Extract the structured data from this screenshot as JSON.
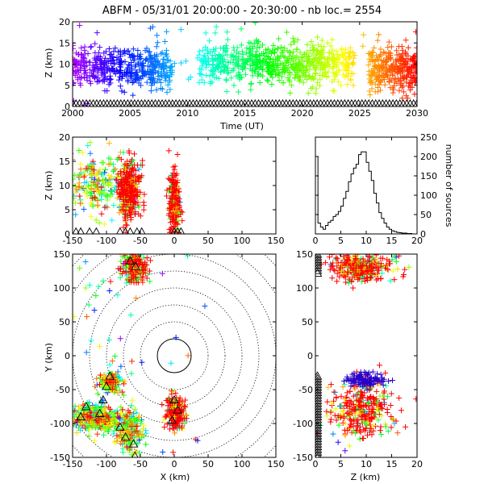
{
  "figure": {
    "title": "ABFM - 05/31/01 20:00:00 - 20:30:00 - nb loc.=    2554"
  },
  "chart_data": [
    {
      "id": "time_height",
      "type": "scatter",
      "xlabel": "Time (UT)",
      "ylabel": "Z (km)",
      "xlim": [
        2000,
        2030
      ],
      "ylim": [
        0,
        20
      ],
      "xticks": [
        2000,
        2005,
        2010,
        2015,
        2020,
        2025,
        2030
      ],
      "yticks": [
        0,
        5,
        10,
        15,
        20
      ],
      "color_by": "time",
      "clusters": [
        {
          "t_range": [
            2000,
            2008.7
          ],
          "z_center": 9,
          "z_spread": 2.2,
          "count": 420
        },
        {
          "t_range": [
            2011,
            2024.5
          ],
          "z_center": 10,
          "z_spread": 2.4,
          "count": 650
        },
        {
          "t_range": [
            2025.8,
            2030
          ],
          "z_center": 8.5,
          "z_spread": 2.5,
          "count": 300
        }
      ],
      "station_markers": "triangles along z = 0"
    },
    {
      "id": "xz_projection",
      "type": "scatter",
      "xlabel": "",
      "ylabel": "Z (km)",
      "xlim": [
        -150,
        150
      ],
      "ylim": [
        0,
        20
      ],
      "xticks": [
        -150,
        -100,
        -50,
        0,
        50,
        100,
        150
      ],
      "yticks": [
        0,
        5,
        10,
        15,
        20
      ],
      "clusters": [
        {
          "x_center": -115,
          "x_spread": 22,
          "z_center": 10,
          "z_spread": 3
        },
        {
          "x_center": -67,
          "x_spread": 8,
          "z_center": 9,
          "z_spread": 3
        },
        {
          "x_center": 0,
          "x_spread": 4,
          "z_center": 6.5,
          "z_spread": 3
        }
      ]
    },
    {
      "id": "altitude_histogram",
      "type": "bar",
      "xlabel": "",
      "ylabel": "number of sources",
      "xlim": [
        0,
        20
      ],
      "ylim": [
        0,
        250
      ],
      "xticks": [
        0,
        5,
        10,
        15,
        20
      ],
      "yticks": [
        0,
        50,
        100,
        150,
        200,
        250
      ],
      "bin_width": 0.5,
      "values": [
        200,
        28,
        18,
        12,
        22,
        30,
        35,
        45,
        50,
        58,
        72,
        92,
        110,
        135,
        155,
        170,
        180,
        205,
        212,
        212,
        185,
        162,
        138,
        105,
        80,
        55,
        40,
        28,
        18,
        12,
        8,
        6,
        4,
        3,
        2,
        2,
        1,
        1,
        0,
        0
      ]
    },
    {
      "id": "xy_plan_view",
      "type": "scatter",
      "xlabel": "X (km)",
      "ylabel": "Y (km)",
      "xlim": [
        -150,
        150
      ],
      "ylim": [
        -150,
        150
      ],
      "xticks": [
        -150,
        -100,
        -50,
        0,
        50,
        100,
        150
      ],
      "yticks": [
        -150,
        -100,
        -50,
        0,
        50,
        100,
        150
      ],
      "range_rings_km": [
        25,
        50,
        75,
        100,
        125,
        150,
        175,
        200
      ],
      "clusters": [
        {
          "x_center": -60,
          "y_center": 130,
          "x_spread": 10,
          "y_spread": 12
        },
        {
          "x_center": -127,
          "y_center": -90,
          "x_spread": 15,
          "y_spread": 10
        },
        {
          "x_center": -100,
          "y_center": -95,
          "x_spread": 12,
          "y_spread": 8
        },
        {
          "x_center": -95,
          "y_center": -40,
          "x_spread": 8,
          "y_spread": 6
        },
        {
          "x_center": -67,
          "y_center": -110,
          "x_spread": 10,
          "y_spread": 15
        },
        {
          "x_center": 3,
          "y_center": -85,
          "x_spread": 8,
          "y_spread": 12
        }
      ],
      "stations": [
        [
          -65,
          140
        ],
        [
          -57,
          132
        ],
        [
          -130,
          -75
        ],
        [
          -138,
          -90
        ],
        [
          -105,
          -65
        ],
        [
          -110,
          -85
        ],
        [
          -95,
          -30
        ],
        [
          -100,
          -45
        ],
        [
          -80,
          -105
        ],
        [
          -72,
          -120
        ],
        [
          -60,
          -130
        ],
        [
          0,
          -65
        ],
        [
          5,
          -80
        ],
        [
          -3,
          -95
        ],
        [
          -58,
          -148
        ]
      ]
    },
    {
      "id": "zy_projection",
      "type": "scatter",
      "xlabel": "Z (km)",
      "ylabel": "",
      "xlim": [
        0,
        20
      ],
      "ylim": [
        -150,
        150
      ],
      "xticks": [
        0,
        5,
        10,
        15,
        20
      ],
      "yticks": [
        -150,
        -100,
        -50,
        0,
        50,
        100,
        150
      ],
      "clusters": [
        {
          "z_center": 9,
          "z_spread": 3,
          "y_center": 130,
          "y_spread": 10
        },
        {
          "z_center": 9,
          "z_spread": 3,
          "y_center": -80,
          "y_spread": 20
        },
        {
          "z_center": 10,
          "z_spread": 2,
          "y_center": -35,
          "y_spread": 5
        }
      ]
    }
  ]
}
